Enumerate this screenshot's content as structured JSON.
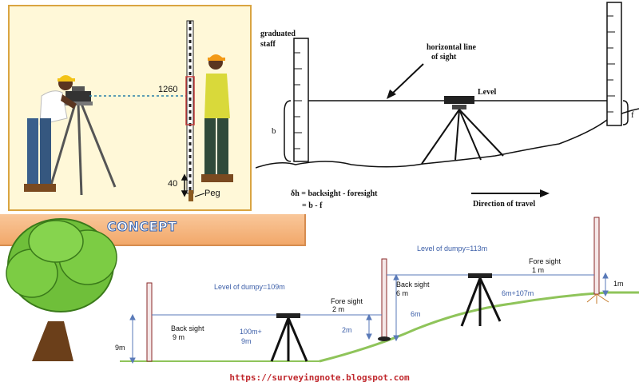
{
  "top_left": {
    "staff_reading": "1260",
    "peg_height": "40",
    "peg_label": "Peg"
  },
  "top_right": {
    "graduated_staff_line1": "graduated",
    "graduated_staff_line2": "staff",
    "horizontal_line_line1": "horizontal line",
    "horizontal_line_line2": "of sight",
    "level_label": "Level",
    "b_label": "b",
    "f_label": "f",
    "formula_line1": "δh = backsight - foresight",
    "formula_line2": "= b - f",
    "direction_label": "Direction of travel"
  },
  "banner": {
    "title": "CONCEPT"
  },
  "bottom": {
    "level_dumpy_1": "Level of dumpy=109m",
    "level_dumpy_2": "Level of dumpy=113m",
    "back_sight_1_line1": "Back sight",
    "back_sight_1_line2": "9 m",
    "nine_m": "9m",
    "hundred_m_line1": "100m+",
    "hundred_m_line2": "9m",
    "fore_sight_1_line1": "Fore sight",
    "fore_sight_1_line2": "2 m",
    "two_m": "2m",
    "back_sight_2_line1": "Back sight",
    "back_sight_2_line2": "6 m",
    "six_m": "6m",
    "six_plus": "6m+107m",
    "fore_sight_2_line1": "Fore sight",
    "fore_sight_2_line2": "1 m",
    "one_m": "1m"
  },
  "footer": {
    "url": "https://surveyingnote.blogspot.com"
  }
}
